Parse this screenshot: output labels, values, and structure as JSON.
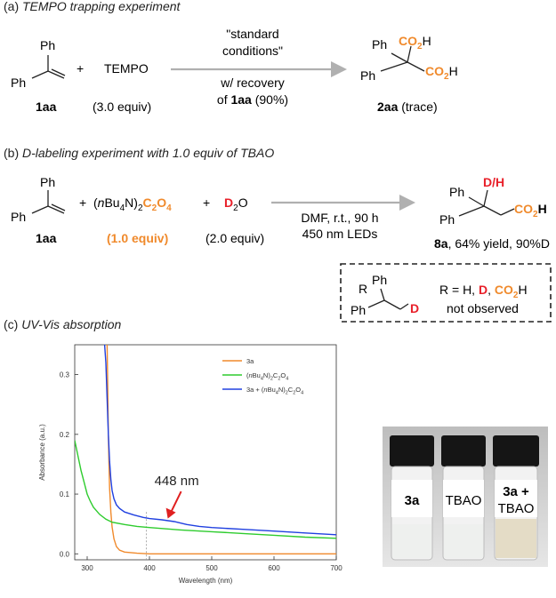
{
  "section_a": {
    "label_prefix": "(a) ",
    "label_italic": "TEMPO trapping experiment",
    "reactant1": {
      "ph_top": "Ph",
      "ph_left": "Ph",
      "id": "1aa"
    },
    "plus": "+",
    "reagent": "TEMPO",
    "reagent_equiv": "(3.0 equiv)",
    "arrow_above_1": "\"standard",
    "arrow_above_2": "conditions\"",
    "arrow_below_1": "w/ recovery",
    "arrow_below_2_prefix": "of ",
    "arrow_below_2_bold": "1aa",
    "arrow_below_2_suffix": " (90%)",
    "product": {
      "ph1": "Ph",
      "ph2": "Ph",
      "co2": "CO",
      "sub2": "2",
      "h": "H",
      "id": "2aa",
      "note": " (trace)"
    }
  },
  "section_b": {
    "label_prefix": "(b) ",
    "label_italic": "D-labeling experiment with 1.0 equiv of TBAO",
    "reactant1": {
      "ph_top": "Ph",
      "ph_left": "Ph",
      "id": "1aa"
    },
    "plus": "+",
    "reagent_paren_open": "(",
    "reagent_n": "n",
    "reagent_bu": "Bu",
    "reagent_sub4": "4",
    "reagent_n2": "N)",
    "reagent_sub2": "2",
    "reagent_c": "C",
    "reagent_o": "O",
    "reagent_sub4b": "4",
    "reagent_equiv": "(1.0 equiv)",
    "d2o_d": "D",
    "d2o_sub": "2",
    "d2o_o": "O",
    "d2o_equiv": "(2.0 equiv)",
    "conditions_1": "DMF, r.t., 90 h",
    "conditions_2": "450 nm LEDs",
    "product": {
      "dh": "D/H",
      "ph1": "Ph",
      "ph2": "Ph",
      "co2": "CO",
      "sub2": "2",
      "h": "H",
      "id": "8a",
      "yield": ", 64% yield, 90%D"
    },
    "box": {
      "r": "R",
      "ph1": "Ph",
      "ph2": "Ph",
      "d": "D",
      "r_eq": "R = H, ",
      "r_d": "D",
      "comma": ", ",
      "r_co2": "CO",
      "r_sub2": "2",
      "r_h": "H",
      "not_observed": "not observed"
    }
  },
  "section_c": {
    "label_prefix": "(c) ",
    "label_italic": "UV-Vis absorption",
    "annotation": "448 nm",
    "vials": {
      "v1": "3a",
      "v2": "TBAO",
      "v3a": "3a +",
      "v3b": "TBAO"
    }
  },
  "chart_data": {
    "type": "line",
    "xlabel": "Wavelength (nm)",
    "ylabel": "Absorbance (a.u.)",
    "xlim": [
      280,
      700
    ],
    "ylim": [
      -0.01,
      0.35
    ],
    "xticks": [
      "300",
      "400",
      "500",
      "600",
      "700"
    ],
    "yticks": [
      "0.0",
      "0.1",
      "0.2",
      "0.3"
    ],
    "grid": false,
    "legend_position": "top-right",
    "reference_line_x": 395,
    "annotation": {
      "text": "448 nm",
      "x": 448
    },
    "legend": {
      "s1": "3a",
      "s2_paren": "(",
      "s2_n": "n",
      "s2_bu": "Bu",
      "s2_4": "4",
      "s2_n2": "N)",
      "s2_2": "2",
      "s2_c": "C",
      "s2_2b": "2",
      "s2_o": "O",
      "s2_4b": "4",
      "s3_a": "3a + (",
      "s3_n": "n",
      "s3_bu": "Bu",
      "s3_4": "4",
      "s3_n2": "N)",
      "s3_2": "2",
      "s3_c": "C",
      "s3_2b": "2",
      "s3_o": "O",
      "s3_4b": "4"
    },
    "series": [
      {
        "color": "#f08a2c",
        "x": [
          332,
          333,
          334,
          335,
          336,
          338,
          340,
          343,
          347,
          352,
          360,
          380,
          400,
          450,
          500,
          600,
          700
        ],
        "y": [
          0.35,
          0.28,
          0.2,
          0.15,
          0.11,
          0.07,
          0.045,
          0.025,
          0.012,
          0.006,
          0.003,
          0.001,
          0.0,
          0.0,
          0.0,
          0.0,
          0.0
        ]
      },
      {
        "color": "#2ecc2e",
        "x": [
          280,
          285,
          290,
          295,
          300,
          305,
          310,
          320,
          330,
          340,
          360,
          380,
          400,
          450,
          500,
          550,
          600,
          650,
          700
        ],
        "y": [
          0.19,
          0.165,
          0.14,
          0.12,
          0.1,
          0.088,
          0.078,
          0.066,
          0.058,
          0.053,
          0.049,
          0.046,
          0.044,
          0.04,
          0.037,
          0.034,
          0.031,
          0.028,
          0.026
        ]
      },
      {
        "color": "#2040e0",
        "x": [
          328,
          330,
          332,
          334,
          336,
          338,
          340,
          343,
          347,
          352,
          360,
          375,
          390,
          400,
          420,
          440,
          448,
          460,
          480,
          500,
          550,
          600,
          650,
          700
        ],
        "y": [
          0.35,
          0.32,
          0.26,
          0.2,
          0.155,
          0.125,
          0.106,
          0.092,
          0.082,
          0.076,
          0.07,
          0.065,
          0.061,
          0.059,
          0.057,
          0.054,
          0.052,
          0.049,
          0.046,
          0.044,
          0.041,
          0.038,
          0.035,
          0.032
        ]
      }
    ]
  }
}
